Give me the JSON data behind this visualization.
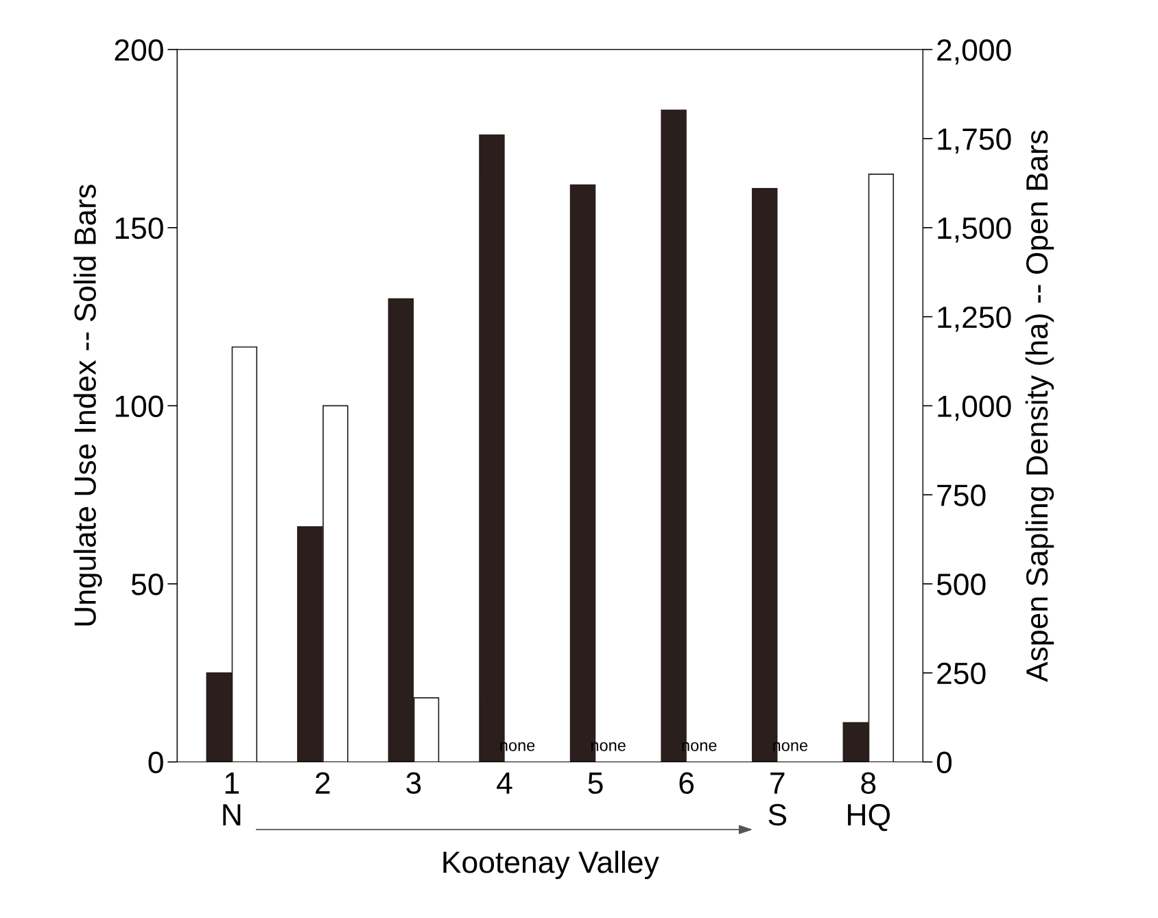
{
  "chart_data": {
    "type": "bar",
    "xlabel": "Kootenay Valley",
    "ylabel": "Ungulate Use Index -- Solid Bars",
    "y2label": "Aspen Sapling Density (ha) -- Open Bars",
    "categories": [
      "1\nN",
      "2",
      "3",
      "4",
      "5",
      "6",
      "7\nS",
      "8\nHQ"
    ],
    "series": [
      {
        "color": "#2a1f1c",
        "values": [
          25,
          66,
          130,
          176,
          162,
          183,
          161,
          11
        ]
      },
      {
        "color": "#ffffff",
        "axis": "y2",
        "values": [
          1165,
          1000,
          180,
          null,
          null,
          null,
          null,
          1650
        ]
      }
    ],
    "ylim": [
      0,
      200
    ],
    "yticks": [
      0,
      50,
      100,
      150,
      200
    ],
    "y2lim": [
      0,
      2000
    ],
    "y2ticks": [
      {
        "value": 0,
        "label": "0"
      },
      {
        "value": 250,
        "label": "250"
      },
      {
        "value": 500,
        "label": "500"
      },
      {
        "value": 750,
        "label": "750"
      },
      {
        "value": 1000,
        "label": "1,000"
      },
      {
        "value": 1250,
        "label": "1,250"
      },
      {
        "value": 1500,
        "label": "1,500"
      },
      {
        "value": 1750,
        "label": "1,750"
      },
      {
        "value": 2000,
        "label": "2,000"
      }
    ],
    "annotations": [
      {
        "text": "none",
        "x": "4",
        "y": 0
      },
      {
        "text": "none",
        "x": "5",
        "y": 0
      },
      {
        "text": "none",
        "x": "6",
        "y": 0
      },
      {
        "text": "none",
        "x": "7\nS",
        "y": 0
      }
    ],
    "grid": false,
    "legend": false
  }
}
